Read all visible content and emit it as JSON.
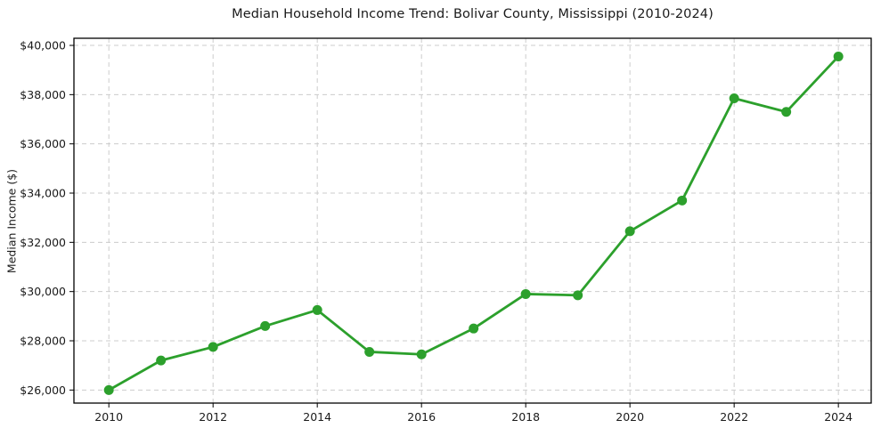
{
  "chart": {
    "title": "Median Household Income Trend: Bolivar County, Mississippi (2010-2024)",
    "ylabel": "Median Income ($)"
  },
  "chart_data": {
    "type": "line",
    "title": "Median Household Income Trend: Bolivar County, Mississippi (2010-2024)",
    "xlabel": "",
    "ylabel": "Median Income ($)",
    "x": [
      2010,
      2011,
      2012,
      2013,
      2014,
      2015,
      2016,
      2017,
      2018,
      2019,
      2020,
      2021,
      2022,
      2023,
      2024
    ],
    "values": [
      26000,
      27200,
      27750,
      28600,
      29250,
      27550,
      27450,
      28500,
      29900,
      29850,
      32450,
      33700,
      37850,
      37300,
      39550
    ],
    "series_name": "Median Household Income",
    "xlim": [
      2009.33,
      2024.63
    ],
    "ylim": [
      25470,
      40290
    ],
    "xticks": [
      2010,
      2012,
      2014,
      2016,
      2018,
      2020,
      2022,
      2024
    ],
    "xtick_labels": [
      "2010",
      "2012",
      "2014",
      "2016",
      "2018",
      "2020",
      "2022",
      "2024"
    ],
    "yticks": [
      26000,
      28000,
      30000,
      32000,
      34000,
      36000,
      38000,
      40000
    ],
    "ytick_labels": [
      "$26,000",
      "$28,000",
      "$30,000",
      "$32,000",
      "$34,000",
      "$36,000",
      "$38,000",
      "$40,000"
    ],
    "grid": true,
    "grid_style": "dashed",
    "legend": "none",
    "line_color": "#2ca02c",
    "marker": "circle",
    "marker_radius": 5.5,
    "line_width": 2.8,
    "grid_color": "#cccccc",
    "spine_color": "#000000",
    "background_color": "#ffffff"
  }
}
